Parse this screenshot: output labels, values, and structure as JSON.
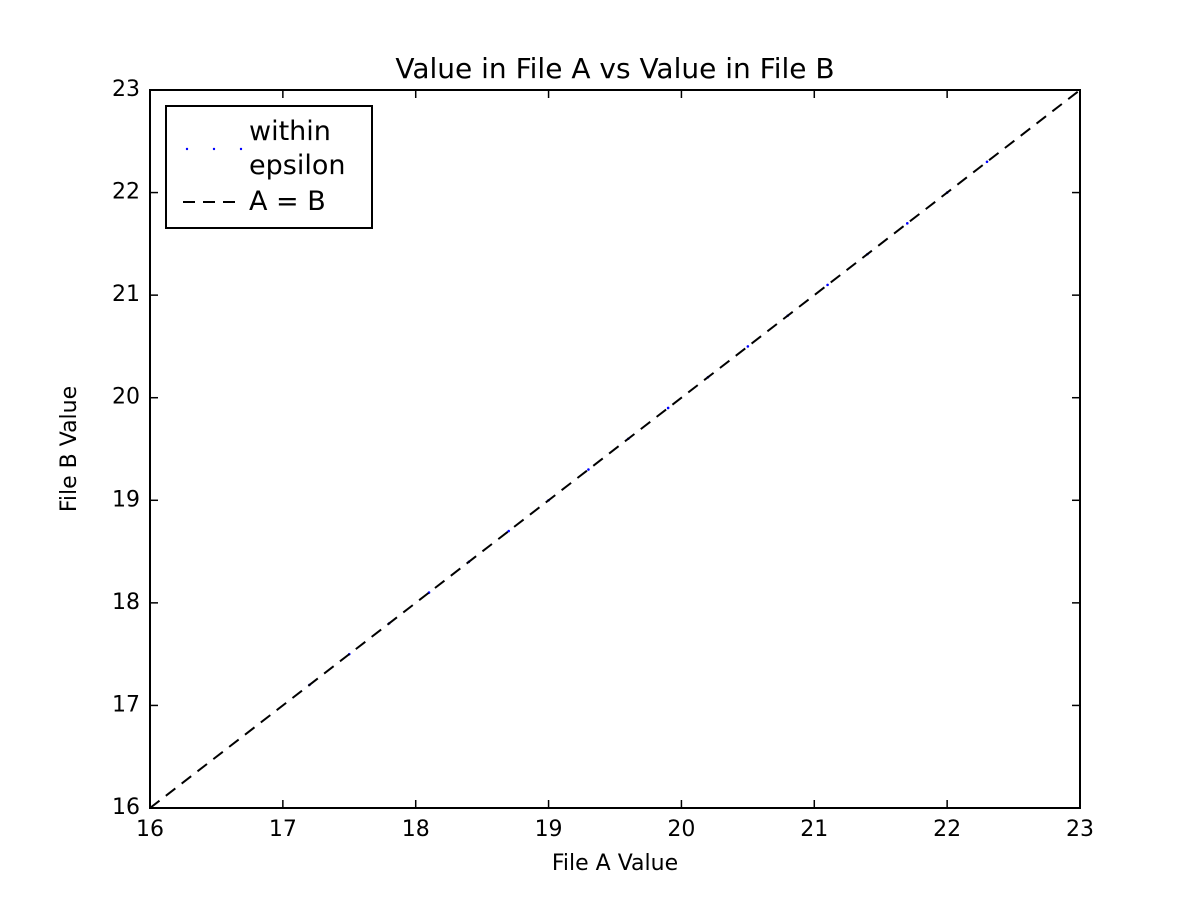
{
  "chart_data": {
    "type": "scatter",
    "title": "Value in File A vs Value in File B",
    "x_label": "File A Value",
    "y_label": "File B Value",
    "xlim": [
      16,
      23
    ],
    "ylim": [
      16,
      23
    ],
    "xticks": [
      16,
      17,
      18,
      19,
      20,
      21,
      22,
      23
    ],
    "yticks": [
      16,
      17,
      18,
      19,
      20,
      21,
      22,
      23
    ],
    "legend": "upper left",
    "series": [
      {
        "name": "within epsilon",
        "type": "scatter",
        "color": "#0000ff",
        "x": [
          17.2,
          17.5,
          17.8,
          18.1,
          18.4,
          18.7,
          19.0,
          19.3,
          19.6,
          19.9,
          20.2,
          20.5,
          20.8,
          21.1,
          21.4,
          21.7,
          22.0,
          22.3
        ],
        "y": [
          17.2,
          17.5,
          17.8,
          18.1,
          18.4,
          18.7,
          19.0,
          19.3,
          19.6,
          19.9,
          20.2,
          20.5,
          20.8,
          21.1,
          21.4,
          21.7,
          22.0,
          22.3
        ]
      },
      {
        "name": "A = B",
        "type": "line",
        "color": "#000000",
        "linestyle": "dashed",
        "x": [
          16,
          23
        ],
        "y": [
          16,
          23
        ]
      }
    ]
  }
}
